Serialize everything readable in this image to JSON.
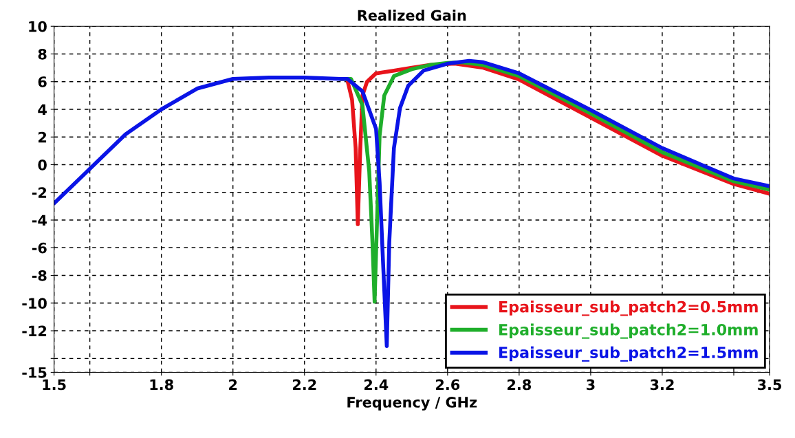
{
  "chart_data": {
    "type": "line",
    "title": "Realized Gain",
    "xlabel": "Frequency / GHz",
    "xlim": [
      1.5,
      3.5
    ],
    "xticks": [
      1.5,
      {
        "value": 1.6,
        "label": null
      },
      1.8,
      2,
      2.2,
      2.4,
      2.6,
      2.8,
      3,
      3.2,
      {
        "value": 3.4,
        "label": null
      },
      3.5
    ],
    "ylim": [
      -15,
      10
    ],
    "yticks": [
      -15,
      {
        "value": -14,
        "label": null
      },
      -12,
      -10,
      -8,
      -6,
      -4,
      -2,
      0,
      2,
      4,
      6,
      8,
      10
    ],
    "grid": true,
    "legend": "bottom right",
    "line_style": "solid",
    "marker": "none",
    "series": [
      {
        "name": "Epaisseur_sub_patch2=0.5mm",
        "color": "#e8141b",
        "x": [
          2.3,
          2.319,
          2.333,
          2.343,
          2.349,
          2.356,
          2.362,
          2.375,
          2.4,
          2.45,
          2.5,
          2.55,
          2.62,
          2.7,
          2.8,
          3.0,
          3.2,
          3.4,
          3.5
        ],
        "values": [
          6.2,
          6.2,
          4.7,
          1.2,
          -4.3,
          1.2,
          5.0,
          6.0,
          6.6,
          6.8,
          7.0,
          7.2,
          7.3,
          7.0,
          6.15,
          3.4,
          0.65,
          -1.4,
          -2.1
        ]
      },
      {
        "name": "Epaisseur_sub_patch2=1.0mm",
        "color": "#1fae2b",
        "x": [
          2.3,
          2.33,
          2.362,
          2.381,
          2.39,
          2.396,
          2.403,
          2.41,
          2.423,
          2.45,
          2.5,
          2.55,
          2.6,
          2.64,
          2.7,
          2.8,
          3.0,
          3.2,
          3.4,
          3.5
        ],
        "values": [
          6.2,
          6.2,
          4.3,
          -0.5,
          -5.6,
          -9.9,
          -3.9,
          2.1,
          5.0,
          6.4,
          6.9,
          7.2,
          7.35,
          7.4,
          7.2,
          6.4,
          3.7,
          0.9,
          -1.2,
          -1.8
        ]
      },
      {
        "name": "Epaisseur_sub_patch2=1.5mm",
        "color": "#0a14e6",
        "x": [
          1.5,
          1.6,
          1.7,
          1.8,
          1.9,
          2.0,
          2.1,
          2.2,
          2.3,
          2.32,
          2.362,
          2.4,
          2.41,
          2.42,
          2.43,
          2.437,
          2.45,
          2.467,
          2.49,
          2.533,
          2.6,
          2.66,
          2.7,
          2.8,
          3.0,
          3.2,
          3.4,
          3.5
        ],
        "values": [
          -2.8,
          -0.3,
          2.2,
          4.0,
          5.5,
          6.2,
          6.3,
          6.3,
          6.2,
          6.2,
          5.3,
          2.6,
          -1.3,
          -7.3,
          -13.1,
          -5.6,
          1.2,
          4.1,
          5.7,
          6.8,
          7.3,
          7.5,
          7.4,
          6.6,
          3.95,
          1.2,
          -1.0,
          -1.55
        ]
      }
    ]
  }
}
